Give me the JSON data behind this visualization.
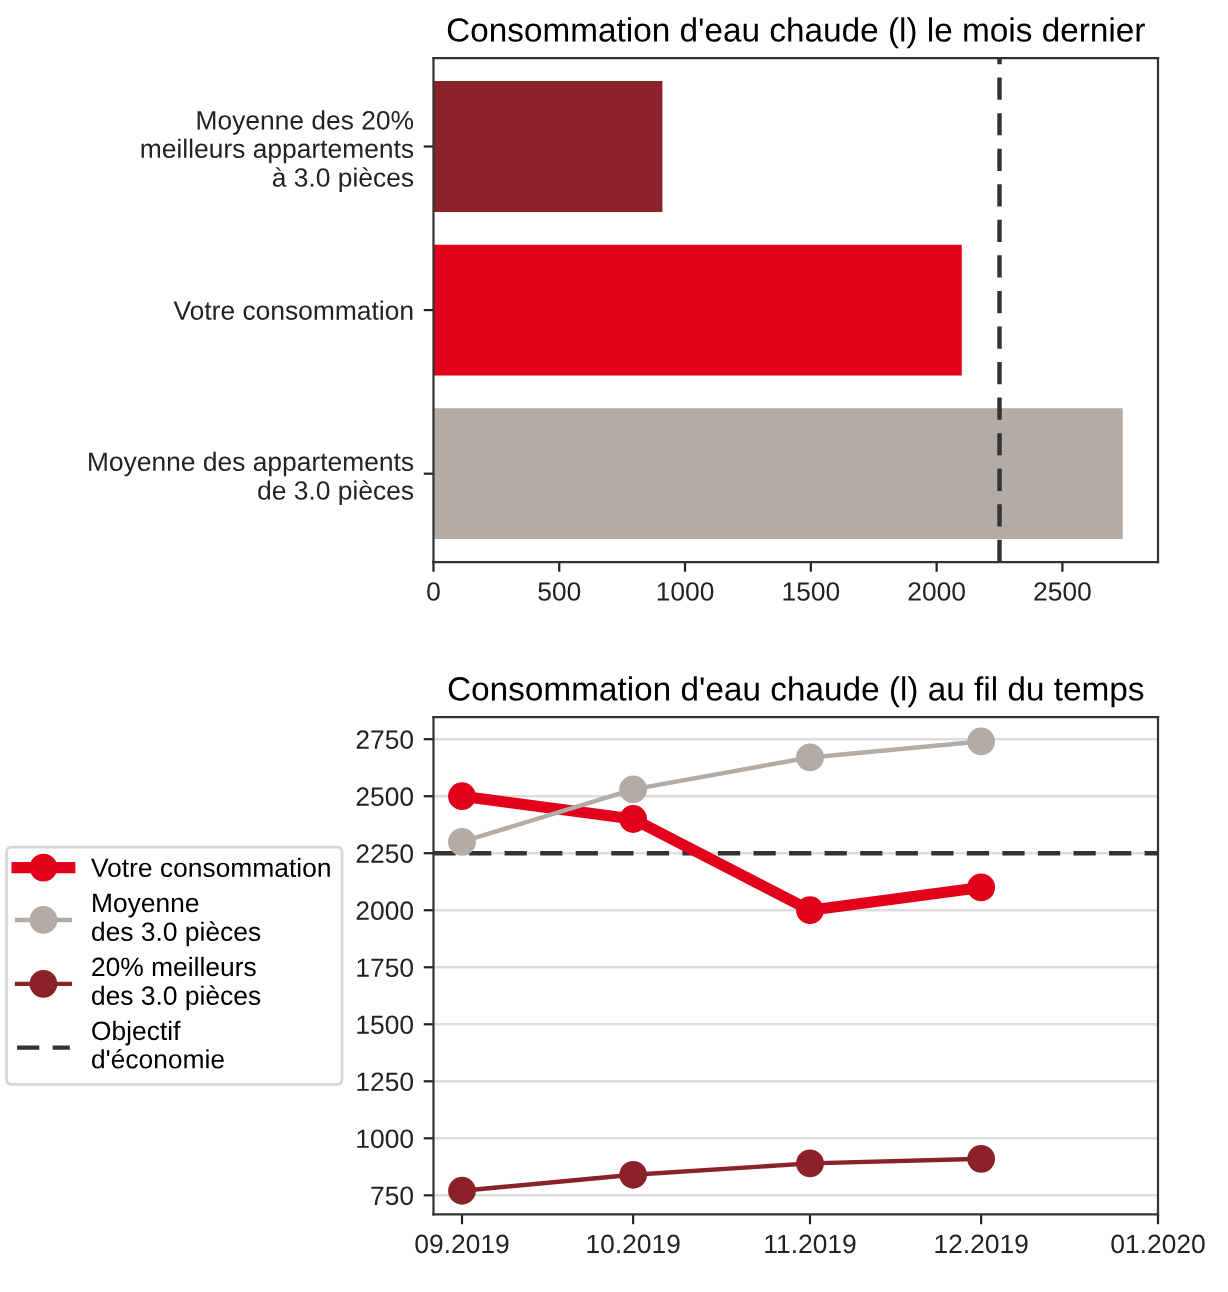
{
  "chart_data": [
    {
      "type": "bar",
      "orientation": "horizontal",
      "title": "Consommation d'eau chaude (l) le mois dernier",
      "categories": [
        "Moyenne des 20%\nmeilleurs appartements\nà 3.0 pièces",
        "Votre consommation",
        "Moyenne des appartements\nde 3.0 pièces"
      ],
      "values": [
        910,
        2100,
        2740
      ],
      "colors": [
        "#8b2229",
        "#e2001a",
        "#b3aba6"
      ],
      "xlim": [
        0,
        2880
      ],
      "xticks": [
        0,
        500,
        1000,
        1500,
        2000,
        2500
      ],
      "grid": false,
      "ref_lines": [
        {
          "axis": "x",
          "value": 2250,
          "color": "#333333",
          "line_style": "dashed"
        }
      ]
    },
    {
      "type": "line",
      "title": "Consommation d'eau chaude (l) au fil du temps",
      "x": [
        "2019-09",
        "2019-10",
        "2019-11",
        "2019-12"
      ],
      "series": [
        {
          "name": "Votre consommation",
          "color": "#e2001a",
          "values": [
            2500,
            2400,
            2000,
            2100
          ]
        },
        {
          "name": "Moyenne\ndes 3.0 pièces",
          "color": "#b3aba6",
          "values": [
            2300,
            2530,
            2670,
            2740
          ]
        },
        {
          "name": "20% meilleurs\ndes 3.0 pièces",
          "color": "#8b2229",
          "values": [
            770,
            840,
            890,
            910
          ]
        }
      ],
      "marker": "circle",
      "line_style": "solid",
      "xlim": [
        "2019-08-27",
        "2020-01"
      ],
      "xticks": [
        {
          "value": "2019-09",
          "label": "09.2019"
        },
        {
          "value": "2019-10",
          "label": "10.2019"
        },
        {
          "value": "2019-11",
          "label": "11.2019"
        },
        {
          "value": "2019-12",
          "label": "12.2019"
        },
        {
          "value": "2020-01",
          "label": "01.2020"
        }
      ],
      "ylim": [
        666,
        2847
      ],
      "yticks": [
        750,
        1000,
        1250,
        1500,
        1750,
        2000,
        2250,
        2500,
        2750
      ],
      "grid": "y",
      "legend": "left",
      "ref_lines": [
        {
          "axis": "y",
          "value": 2250,
          "label": "Objectif\nd'économie",
          "color": "#333333",
          "line_style": "dashed"
        }
      ]
    }
  ]
}
